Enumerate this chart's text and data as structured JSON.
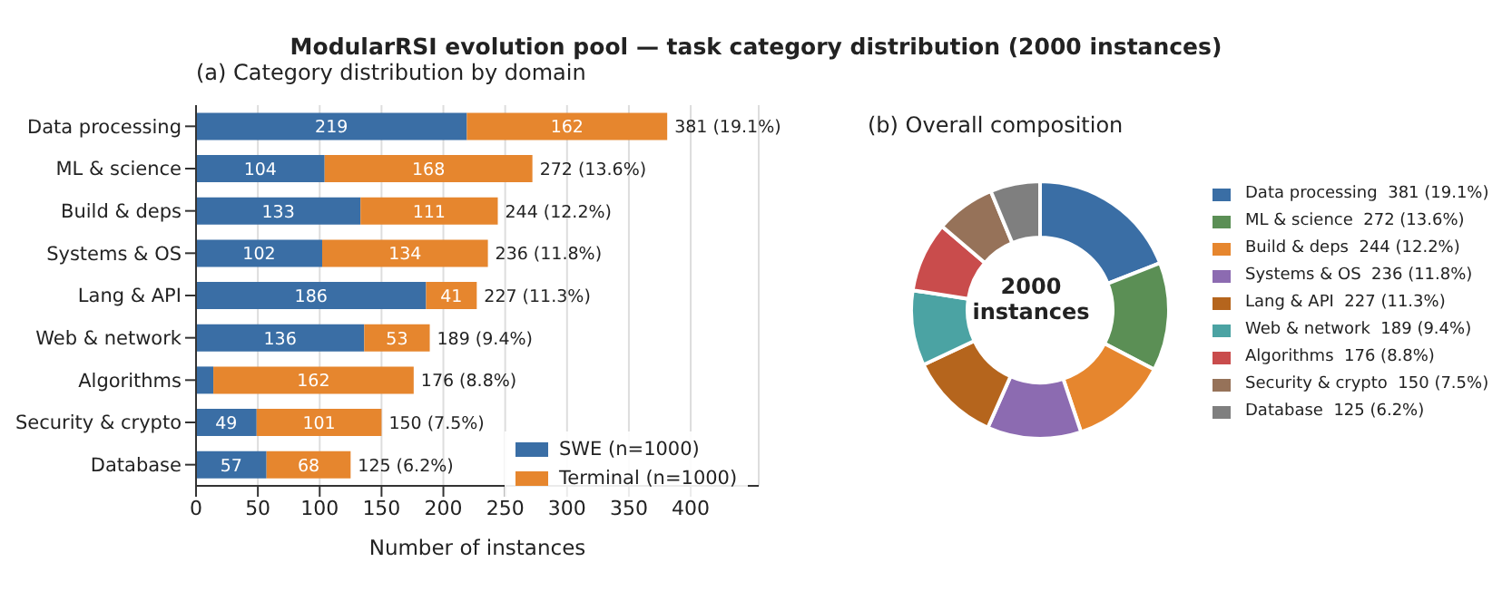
{
  "chart_data": [
    {
      "type": "bar",
      "orientation": "horizontal",
      "stacked": true,
      "title": "ModularRSI evolution pool — task category distribution (2000 instances)",
      "subtitle": "(a) Category distribution by domain",
      "xlabel": "Number of instances",
      "categories": [
        "Data processing",
        "ML & science",
        "Build & deps",
        "Systems & OS",
        "Lang & API",
        "Web & network",
        "Algorithms",
        "Security & crypto",
        "Database"
      ],
      "series": [
        {
          "name": "SWE (n=1000)",
          "color": "#3a6ea5",
          "values": [
            219,
            104,
            133,
            102,
            186,
            136,
            14,
            49,
            57
          ],
          "value_labels": [
            "219",
            "104",
            "133",
            "102",
            "186",
            "136",
            null,
            "49",
            "57"
          ]
        },
        {
          "name": "Terminal (n=1000)",
          "color": "#e6862e",
          "values": [
            162,
            168,
            111,
            134,
            41,
            53,
            162,
            101,
            68
          ],
          "value_labels": [
            "162",
            "168",
            "111",
            "134",
            "41",
            "53",
            "162",
            "101",
            "68"
          ]
        }
      ],
      "totals": [
        "381  (19.1%)",
        "272  (13.6%)",
        "244  (12.2%)",
        "236  (11.8%)",
        "227  (11.3%)",
        "189  (9.4%)",
        "176  (8.8%)",
        "150  (7.5%)",
        "125  (6.2%)"
      ],
      "xlim": [
        0,
        455
      ],
      "xticks": [
        0,
        50,
        100,
        150,
        200,
        250,
        300,
        350,
        400
      ],
      "grid": "x",
      "legend": "bottom right"
    },
    {
      "type": "donut",
      "title": "(b) Overall composition",
      "annotations": [
        "2000\ninstances"
      ],
      "categories": [
        "Data processing",
        "ML & science",
        "Build & deps",
        "Systems & OS",
        "Lang & API",
        "Web & network",
        "Algorithms",
        "Security & crypto",
        "Database"
      ],
      "values": [
        381,
        272,
        244,
        236,
        227,
        189,
        176,
        150,
        125
      ],
      "value_labels": [
        "381 (19.1%)",
        "272 (13.6%)",
        "244 (12.2%)",
        "236 (11.8%)",
        "227 (11.3%)",
        "189 (9.4%)",
        "176 (8.8%)",
        "150 (7.5%)",
        "125 (6.2%)"
      ],
      "colors": [
        "#3a6ea5",
        "#5b8f55",
        "#e6862e",
        "#8c6bb1",
        "#b5651d",
        "#4ba3a3",
        "#c94c4c",
        "#967259",
        "#7f7f7f"
      ],
      "legend": "right"
    }
  ]
}
